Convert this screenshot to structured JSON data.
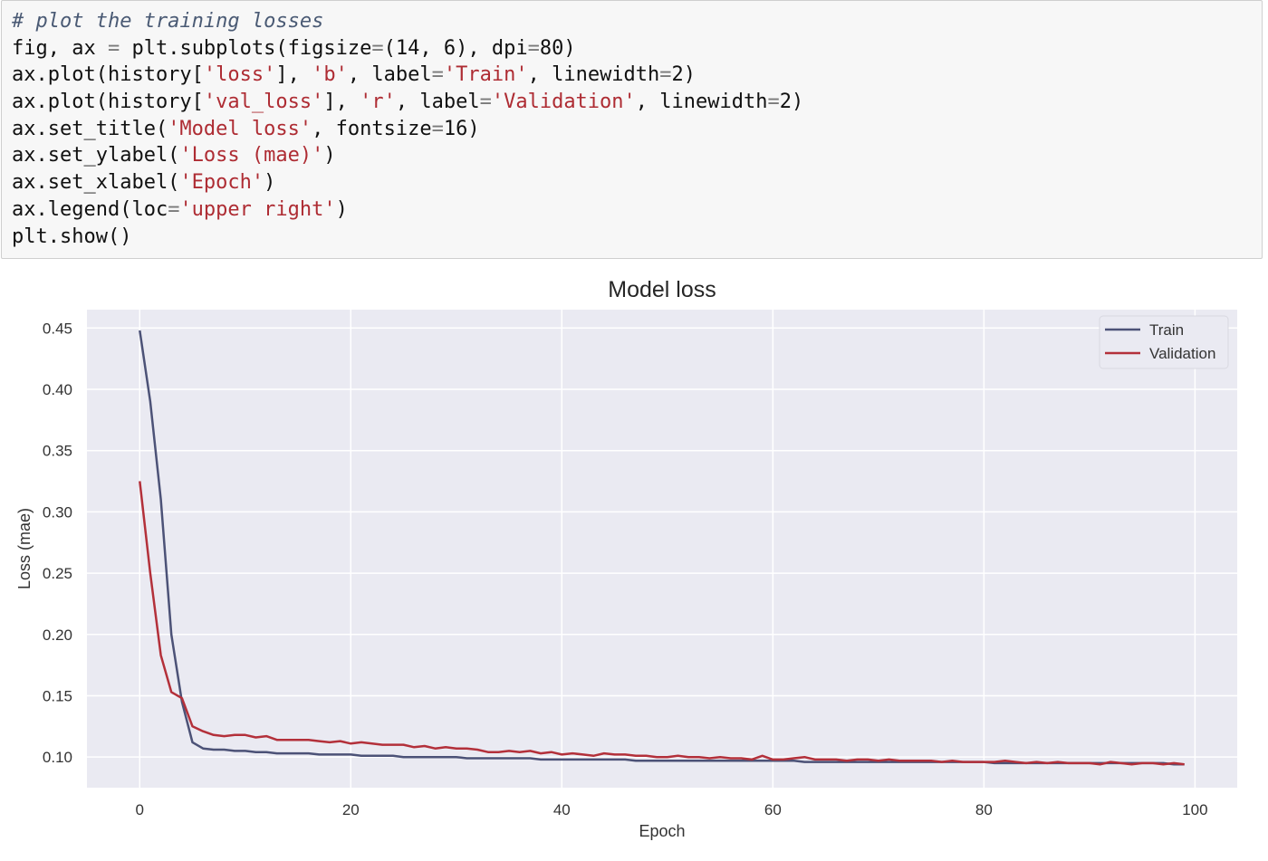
{
  "code_cell": {
    "lines": [
      [
        {
          "t": "# plot the training losses",
          "k": "comment"
        }
      ],
      [
        {
          "t": "fig, ax ",
          "k": "plain"
        },
        {
          "t": "=",
          "k": "op"
        },
        {
          "t": " plt.subplots(figsize",
          "k": "plain"
        },
        {
          "t": "=",
          "k": "op"
        },
        {
          "t": "(14, 6), dpi",
          "k": "plain"
        },
        {
          "t": "=",
          "k": "op"
        },
        {
          "t": "80)",
          "k": "plain"
        }
      ],
      [
        {
          "t": "ax.plot(history[",
          "k": "plain"
        },
        {
          "t": "'loss'",
          "k": "string"
        },
        {
          "t": "], ",
          "k": "plain"
        },
        {
          "t": "'b'",
          "k": "string"
        },
        {
          "t": ", label",
          "k": "plain"
        },
        {
          "t": "=",
          "k": "op"
        },
        {
          "t": "'Train'",
          "k": "string"
        },
        {
          "t": ", linewidth",
          "k": "plain"
        },
        {
          "t": "=",
          "k": "op"
        },
        {
          "t": "2)",
          "k": "plain"
        }
      ],
      [
        {
          "t": "ax.plot(history[",
          "k": "plain"
        },
        {
          "t": "'val_loss'",
          "k": "string"
        },
        {
          "t": "], ",
          "k": "plain"
        },
        {
          "t": "'r'",
          "k": "string"
        },
        {
          "t": ", label",
          "k": "plain"
        },
        {
          "t": "=",
          "k": "op"
        },
        {
          "t": "'Validation'",
          "k": "string"
        },
        {
          "t": ", linewidth",
          "k": "plain"
        },
        {
          "t": "=",
          "k": "op"
        },
        {
          "t": "2)",
          "k": "plain"
        }
      ],
      [
        {
          "t": "ax.set_title(",
          "k": "plain"
        },
        {
          "t": "'Model loss'",
          "k": "string"
        },
        {
          "t": ", fontsize",
          "k": "plain"
        },
        {
          "t": "=",
          "k": "op"
        },
        {
          "t": "16)",
          "k": "plain"
        }
      ],
      [
        {
          "t": "ax.set_ylabel(",
          "k": "plain"
        },
        {
          "t": "'Loss (mae)'",
          "k": "string"
        },
        {
          "t": ")",
          "k": "plain"
        }
      ],
      [
        {
          "t": "ax.set_xlabel(",
          "k": "plain"
        },
        {
          "t": "'Epoch'",
          "k": "string"
        },
        {
          "t": ")",
          "k": "plain"
        }
      ],
      [
        {
          "t": "ax.legend(loc",
          "k": "plain"
        },
        {
          "t": "=",
          "k": "op"
        },
        {
          "t": "'upper right'",
          "k": "string"
        },
        {
          "t": ")",
          "k": "plain"
        }
      ],
      [
        {
          "t": "plt.show()",
          "k": "plain"
        }
      ]
    ]
  },
  "colors": {
    "plot_background": "#eaeaf2",
    "grid": "#ffffff",
    "train_line": "#4c5277",
    "validation_line": "#b3303a",
    "code_comment": "#4a5a74",
    "code_string": "#ae2c33"
  },
  "chart_data": {
    "type": "line",
    "title": "Model loss",
    "xlabel": "Epoch",
    "ylabel": "Loss (mae)",
    "xlim": [
      -5,
      104
    ],
    "ylim": [
      0.075,
      0.465
    ],
    "xticks": [
      0,
      20,
      40,
      60,
      80,
      100
    ],
    "yticks": [
      0.1,
      0.15,
      0.2,
      0.25,
      0.3,
      0.35,
      0.4,
      0.45
    ],
    "ytick_labels": [
      "0.10",
      "0.15",
      "0.20",
      "0.25",
      "0.30",
      "0.35",
      "0.40",
      "0.45"
    ],
    "grid": true,
    "legend_position": "upper right",
    "series": [
      {
        "name": "Train",
        "color": "#4c5277",
        "x": [
          0,
          1,
          2,
          3,
          4,
          5,
          6,
          7,
          8,
          9,
          10,
          11,
          12,
          13,
          14,
          15,
          16,
          17,
          18,
          19,
          20,
          21,
          22,
          23,
          24,
          25,
          26,
          27,
          28,
          29,
          30,
          31,
          32,
          33,
          34,
          35,
          36,
          37,
          38,
          39,
          40,
          41,
          42,
          43,
          44,
          45,
          46,
          47,
          48,
          49,
          50,
          51,
          52,
          53,
          54,
          55,
          56,
          57,
          58,
          59,
          60,
          61,
          62,
          63,
          64,
          65,
          66,
          67,
          68,
          69,
          70,
          71,
          72,
          73,
          74,
          75,
          76,
          77,
          78,
          79,
          80,
          81,
          82,
          83,
          84,
          85,
          86,
          87,
          88,
          89,
          90,
          91,
          92,
          93,
          94,
          95,
          96,
          97,
          98,
          99
        ],
        "y": [
          0.448,
          0.39,
          0.31,
          0.2,
          0.145,
          0.112,
          0.107,
          0.106,
          0.106,
          0.105,
          0.105,
          0.104,
          0.104,
          0.103,
          0.103,
          0.103,
          0.103,
          0.102,
          0.102,
          0.102,
          0.102,
          0.101,
          0.101,
          0.101,
          0.101,
          0.1,
          0.1,
          0.1,
          0.1,
          0.1,
          0.1,
          0.099,
          0.099,
          0.099,
          0.099,
          0.099,
          0.099,
          0.099,
          0.098,
          0.098,
          0.098,
          0.098,
          0.098,
          0.098,
          0.098,
          0.098,
          0.098,
          0.097,
          0.097,
          0.097,
          0.097,
          0.097,
          0.097,
          0.097,
          0.097,
          0.097,
          0.097,
          0.097,
          0.097,
          0.097,
          0.097,
          0.097,
          0.097,
          0.096,
          0.096,
          0.096,
          0.096,
          0.096,
          0.096,
          0.096,
          0.096,
          0.096,
          0.096,
          0.096,
          0.096,
          0.096,
          0.096,
          0.096,
          0.096,
          0.096,
          0.096,
          0.095,
          0.095,
          0.095,
          0.095,
          0.095,
          0.095,
          0.095,
          0.095,
          0.095,
          0.095,
          0.095,
          0.095,
          0.095,
          0.095,
          0.095,
          0.095,
          0.095,
          0.094,
          0.094
        ]
      },
      {
        "name": "Validation",
        "color": "#b3303a",
        "x": [
          0,
          1,
          2,
          3,
          4,
          5,
          6,
          7,
          8,
          9,
          10,
          11,
          12,
          13,
          14,
          15,
          16,
          17,
          18,
          19,
          20,
          21,
          22,
          23,
          24,
          25,
          26,
          27,
          28,
          29,
          30,
          31,
          32,
          33,
          34,
          35,
          36,
          37,
          38,
          39,
          40,
          41,
          42,
          43,
          44,
          45,
          46,
          47,
          48,
          49,
          50,
          51,
          52,
          53,
          54,
          55,
          56,
          57,
          58,
          59,
          60,
          61,
          62,
          63,
          64,
          65,
          66,
          67,
          68,
          69,
          70,
          71,
          72,
          73,
          74,
          75,
          76,
          77,
          78,
          79,
          80,
          81,
          82,
          83,
          84,
          85,
          86,
          87,
          88,
          89,
          90,
          91,
          92,
          93,
          94,
          95,
          96,
          97,
          98,
          99
        ],
        "y": [
          0.325,
          0.25,
          0.183,
          0.153,
          0.148,
          0.125,
          0.121,
          0.118,
          0.117,
          0.118,
          0.118,
          0.116,
          0.117,
          0.114,
          0.114,
          0.114,
          0.114,
          0.113,
          0.112,
          0.113,
          0.111,
          0.112,
          0.111,
          0.11,
          0.11,
          0.11,
          0.108,
          0.109,
          0.107,
          0.108,
          0.107,
          0.107,
          0.106,
          0.104,
          0.104,
          0.105,
          0.104,
          0.105,
          0.103,
          0.104,
          0.102,
          0.103,
          0.102,
          0.101,
          0.103,
          0.102,
          0.102,
          0.101,
          0.101,
          0.1,
          0.1,
          0.101,
          0.1,
          0.1,
          0.099,
          0.1,
          0.099,
          0.099,
          0.098,
          0.101,
          0.098,
          0.098,
          0.099,
          0.1,
          0.098,
          0.098,
          0.098,
          0.097,
          0.098,
          0.098,
          0.097,
          0.098,
          0.097,
          0.097,
          0.097,
          0.097,
          0.096,
          0.097,
          0.096,
          0.096,
          0.096,
          0.096,
          0.097,
          0.096,
          0.095,
          0.096,
          0.095,
          0.096,
          0.095,
          0.095,
          0.095,
          0.094,
          0.096,
          0.095,
          0.094,
          0.095,
          0.095,
          0.094,
          0.095,
          0.094
        ]
      }
    ]
  }
}
